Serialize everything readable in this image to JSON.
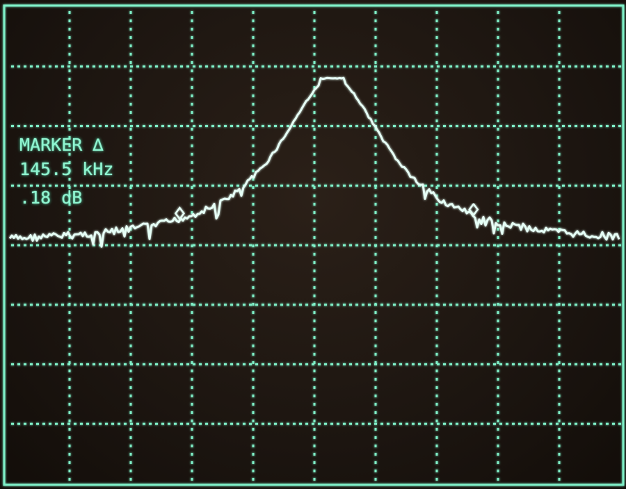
{
  "marker_readout": {
    "mode_label": "MARKER ∆",
    "frequency": "145.5 kHz",
    "level": ".18 dB"
  },
  "display": {
    "phosphor_color": "#7ff0c8",
    "trace_color": "#e6fff6",
    "grid_divisions_x": 10,
    "grid_divisions_y": 8,
    "graticule": "dotted"
  },
  "trace": {
    "shape": "single resonance peak, centered slightly right of center",
    "peak_division_from_top": 1.2,
    "baseline_left_division_from_top": 4.0,
    "baseline_right_division_from_top": 4.0,
    "markers": [
      {
        "name": "marker-left",
        "symbol": "diamond"
      },
      {
        "name": "marker-right",
        "symbol": "diamond"
      }
    ]
  }
}
